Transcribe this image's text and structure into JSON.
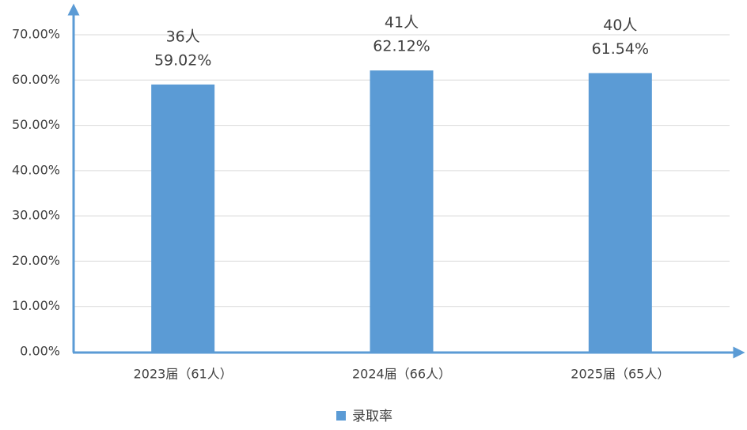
{
  "chart_data": {
    "type": "bar",
    "categories": [
      "2023届（61人）",
      "2024届（66人）",
      "2025届（65人）"
    ],
    "series": [
      {
        "name": "录取率",
        "color": "#5b9bd5",
        "values": [
          59.02,
          62.12,
          61.54
        ],
        "value_labels": [
          "59.02%",
          "62.12%",
          "61.54%"
        ]
      }
    ],
    "annotations": [
      "36人",
      "41人",
      "40人"
    ],
    "ylim": [
      0,
      70
    ],
    "yticks": [
      {
        "value": 0,
        "label": "0.00%"
      },
      {
        "value": 10,
        "label": "10.00%"
      },
      {
        "value": 20,
        "label": "20.00%"
      },
      {
        "value": 30,
        "label": "30.00%"
      },
      {
        "value": 40,
        "label": "40.00%"
      },
      {
        "value": 50,
        "label": "50.00%"
      },
      {
        "value": 60,
        "label": "60.00%"
      },
      {
        "value": 70,
        "label": "70.00%"
      }
    ],
    "grid": true,
    "legend": "bottom"
  }
}
